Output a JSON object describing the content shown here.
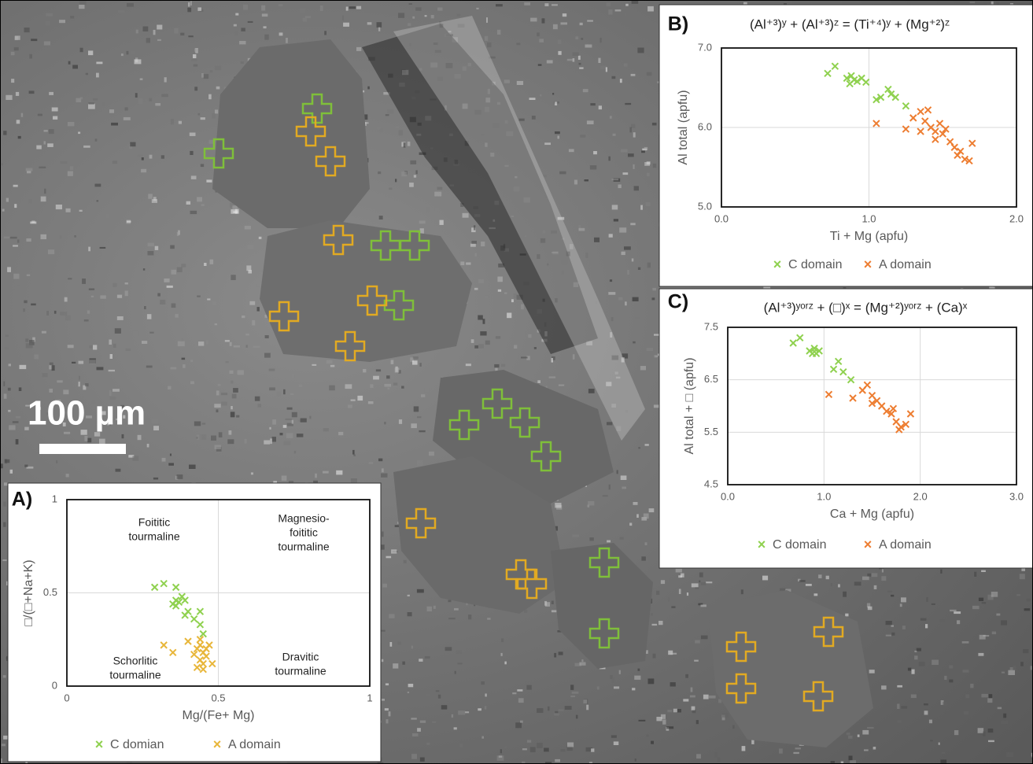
{
  "image": {
    "scale_label": "100 µm"
  },
  "chart_data": [
    {
      "type": "scatter",
      "panel_label": "A)",
      "xlabel": "Mg/(Fe+ Mg)",
      "ylabel": "□/(□+Na+K)",
      "xlim": [
        0,
        1
      ],
      "ylim": [
        0,
        1
      ],
      "xticks": [
        0,
        0.5,
        1
      ],
      "yticks": [
        0,
        0.5,
        1
      ],
      "grid": true,
      "annotations": [
        [
          "Foititic",
          "tourmaline"
        ],
        [
          "Magnesio-",
          "foititic",
          "tourmaline"
        ],
        [
          "Schorlitic",
          "tourmaline"
        ],
        [
          "Dravitic",
          "tourmaline"
        ]
      ],
      "series": [
        {
          "name": "C domian",
          "color": "#8fd14f",
          "x": [
            0.29,
            0.32,
            0.36,
            0.38,
            0.35,
            0.36,
            0.37,
            0.39,
            0.4,
            0.42,
            0.44,
            0.44,
            0.39,
            0.36,
            0.45
          ],
          "values": [
            0.53,
            0.55,
            0.53,
            0.48,
            0.44,
            0.43,
            0.45,
            0.46,
            0.4,
            0.36,
            0.4,
            0.33,
            0.38,
            0.46,
            0.28
          ]
        },
        {
          "name": "A domain",
          "color": "#e8b63a",
          "x": [
            0.32,
            0.35,
            0.4,
            0.43,
            0.44,
            0.45,
            0.46,
            0.44,
            0.45,
            0.43,
            0.47,
            0.46,
            0.44,
            0.42,
            0.48,
            0.45
          ],
          "values": [
            0.22,
            0.18,
            0.24,
            0.2,
            0.22,
            0.18,
            0.16,
            0.14,
            0.12,
            0.1,
            0.22,
            0.2,
            0.25,
            0.17,
            0.12,
            0.09
          ]
        }
      ]
    },
    {
      "type": "scatter",
      "panel_label": "B)",
      "title": "(Al⁺³)ʸ + (Al⁺³)ᶻ = (Ti⁺⁴)ʸ + (Mg⁺²)ᶻ",
      "xlabel": "Ti + Mg (apfu)",
      "ylabel": "Al total (apfu)",
      "xlim": [
        0,
        2
      ],
      "ylim": [
        5,
        7
      ],
      "xticks": [
        {
          "value": 0,
          "label": "0.0"
        },
        {
          "value": 1,
          "label": "1.0"
        },
        {
          "value": 2,
          "label": "2.0"
        }
      ],
      "yticks": [
        {
          "value": 5,
          "label": "5.0"
        },
        {
          "value": 6,
          "label": "6.0"
        },
        {
          "value": 7,
          "label": "7.0"
        }
      ],
      "grid": true,
      "series": [
        {
          "name": "C domain",
          "color": "#8fd14f",
          "x": [
            0.72,
            0.77,
            0.85,
            0.88,
            0.9,
            0.87,
            0.92,
            0.95,
            0.98,
            1.05,
            1.08,
            1.13,
            1.15,
            1.18,
            1.25
          ],
          "values": [
            6.68,
            6.77,
            6.62,
            6.65,
            6.6,
            6.55,
            6.58,
            6.62,
            6.57,
            6.35,
            6.38,
            6.48,
            6.42,
            6.38,
            6.27
          ]
        },
        {
          "name": "A domain",
          "color": "#ed7d31",
          "x": [
            1.05,
            1.25,
            1.3,
            1.35,
            1.38,
            1.4,
            1.42,
            1.45,
            1.48,
            1.5,
            1.52,
            1.55,
            1.58,
            1.6,
            1.62,
            1.65,
            1.68,
            1.7,
            1.45,
            1.35
          ],
          "values": [
            6.05,
            5.98,
            6.12,
            6.2,
            6.08,
            6.22,
            6.0,
            5.95,
            6.05,
            5.92,
            5.98,
            5.82,
            5.75,
            5.65,
            5.7,
            5.6,
            5.58,
            5.8,
            5.85,
            5.95
          ]
        }
      ]
    },
    {
      "type": "scatter",
      "panel_label": "C)",
      "title": "(Al⁺³)ʸᵒʳᶻ + (□)ˣ = (Mg⁺²)ʸᵒʳᶻ + (Ca)ˣ",
      "xlabel": "Ca + Mg (apfu)",
      "ylabel": "Al total + □ (apfu)",
      "xlim": [
        0,
        3
      ],
      "ylim": [
        4.5,
        7.5
      ],
      "xticks": [
        {
          "value": 0,
          "label": "0.0"
        },
        {
          "value": 1,
          "label": "1.0"
        },
        {
          "value": 2,
          "label": "2.0"
        },
        {
          "value": 3,
          "label": "3.0"
        }
      ],
      "yticks": [
        4.5,
        5.5,
        6.5,
        7.5
      ],
      "grid": true,
      "series": [
        {
          "name": "C domain",
          "color": "#8fd14f",
          "x": [
            0.68,
            0.75,
            0.85,
            0.9,
            0.92,
            0.95,
            0.88,
            1.15,
            1.1,
            1.2,
            1.28
          ],
          "values": [
            7.2,
            7.3,
            7.05,
            7.1,
            7.0,
            7.05,
            7.0,
            6.85,
            6.7,
            6.65,
            6.5
          ]
        },
        {
          "name": "A domain",
          "color": "#ed7d31",
          "x": [
            1.05,
            1.3,
            1.4,
            1.45,
            1.5,
            1.55,
            1.6,
            1.65,
            1.7,
            1.75,
            1.8,
            1.85,
            1.9,
            1.5,
            1.72,
            1.78
          ],
          "values": [
            6.22,
            6.15,
            6.3,
            6.4,
            6.2,
            6.1,
            6.0,
            5.9,
            5.85,
            5.7,
            5.6,
            5.65,
            5.85,
            6.05,
            5.95,
            5.55
          ]
        }
      ]
    }
  ]
}
